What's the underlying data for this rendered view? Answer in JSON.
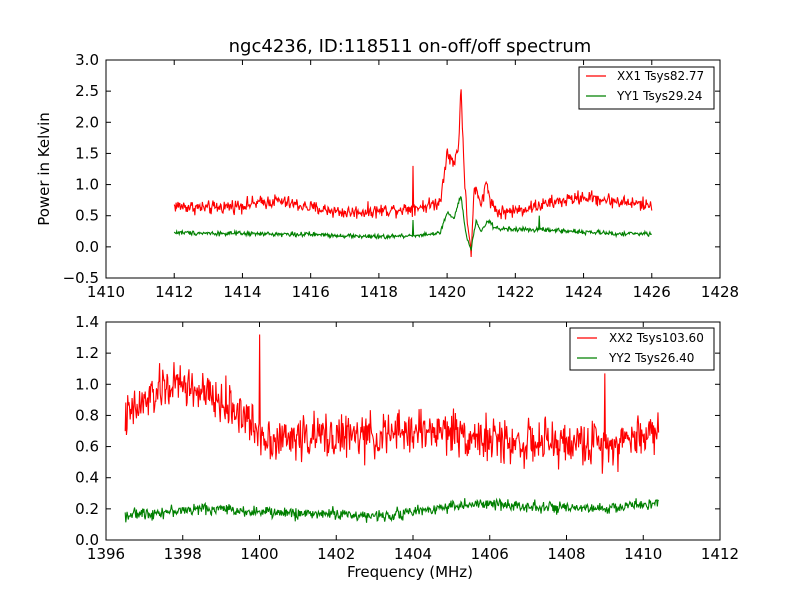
{
  "title": "ngc4236, ID:118511 on-off/off spectrum",
  "colors": {
    "xx": "#ff0000",
    "yy": "#008000"
  },
  "chart_data": [
    {
      "type": "line",
      "title": "ngc4236, ID:118511 on-off/off spectrum",
      "xlabel": "",
      "ylabel": "Power in Kelvin",
      "xlim": [
        1410,
        1428
      ],
      "ylim": [
        -0.5,
        3.0
      ],
      "xticks": [
        "1410",
        "1412",
        "1414",
        "1416",
        "1418",
        "1420",
        "1422",
        "1424",
        "1426",
        "1428"
      ],
      "yticks": [
        "−0.5",
        "0.0",
        "0.5",
        "1.0",
        "1.5",
        "2.0",
        "2.5",
        "3.0"
      ],
      "grid": false,
      "legend_position": "top-right",
      "series": [
        {
          "name": "XX1 Tsys82.77",
          "color": "#ff0000",
          "noise": 0.055,
          "spikes": [
            [
              1419.0,
              1.3
            ]
          ],
          "points": [
            [
              1412.0,
              0.66
            ],
            [
              1413.0,
              0.62
            ],
            [
              1414.0,
              0.67
            ],
            [
              1415.0,
              0.74
            ],
            [
              1416.0,
              0.63
            ],
            [
              1417.0,
              0.55
            ],
            [
              1418.0,
              0.58
            ],
            [
              1418.9,
              0.62
            ],
            [
              1419.4,
              0.66
            ],
            [
              1419.8,
              0.72
            ],
            [
              1420.0,
              1.55
            ],
            [
              1420.2,
              1.3
            ],
            [
              1420.35,
              1.7
            ],
            [
              1420.4,
              2.65
            ],
            [
              1420.5,
              1.2
            ],
            [
              1420.6,
              0.4
            ],
            [
              1420.7,
              -0.15
            ],
            [
              1420.8,
              1.0
            ],
            [
              1420.9,
              0.8
            ],
            [
              1421.0,
              0.65
            ],
            [
              1421.15,
              1.05
            ],
            [
              1421.3,
              0.7
            ],
            [
              1421.5,
              0.55
            ],
            [
              1422.0,
              0.58
            ],
            [
              1423.0,
              0.7
            ],
            [
              1424.0,
              0.8
            ],
            [
              1425.0,
              0.73
            ],
            [
              1426.0,
              0.66
            ]
          ]
        },
        {
          "name": "YY1 Tsys29.24",
          "color": "#008000",
          "noise": 0.018,
          "spikes": [
            [
              1419.0,
              0.43
            ],
            [
              1422.7,
              0.5
            ]
          ],
          "points": [
            [
              1412.0,
              0.23
            ],
            [
              1414.0,
              0.21
            ],
            [
              1416.0,
              0.2
            ],
            [
              1417.0,
              0.18
            ],
            [
              1418.0,
              0.16
            ],
            [
              1419.0,
              0.18
            ],
            [
              1419.8,
              0.22
            ],
            [
              1420.0,
              0.55
            ],
            [
              1420.2,
              0.45
            ],
            [
              1420.4,
              0.83
            ],
            [
              1420.55,
              0.2
            ],
            [
              1420.7,
              -0.05
            ],
            [
              1420.85,
              0.4
            ],
            [
              1421.0,
              0.25
            ],
            [
              1421.2,
              0.42
            ],
            [
              1421.4,
              0.3
            ],
            [
              1422.0,
              0.28
            ],
            [
              1423.0,
              0.27
            ],
            [
              1424.0,
              0.24
            ],
            [
              1425.0,
              0.21
            ],
            [
              1426.0,
              0.21
            ]
          ]
        }
      ]
    },
    {
      "type": "line",
      "title": "",
      "xlabel": "Frequency (MHz)",
      "ylabel": "",
      "xlim": [
        1396,
        1412
      ],
      "ylim": [
        0.0,
        1.4
      ],
      "xticks": [
        "1396",
        "1398",
        "1400",
        "1402",
        "1404",
        "1406",
        "1408",
        "1410",
        "1412"
      ],
      "yticks": [
        "0.0",
        "0.2",
        "0.4",
        "0.6",
        "0.8",
        "1.0",
        "1.2",
        "1.4"
      ],
      "grid": false,
      "legend_position": "top-right",
      "series": [
        {
          "name": "XX2 Tsys103.60",
          "color": "#ff0000",
          "noise": 0.07,
          "spikes": [
            [
              1400.0,
              1.32
            ],
            [
              1409.0,
              1.07
            ]
          ],
          "points": [
            [
              1396.5,
              0.78
            ],
            [
              1397.0,
              0.88
            ],
            [
              1397.5,
              0.98
            ],
            [
              1398.0,
              1.0
            ],
            [
              1398.5,
              0.94
            ],
            [
              1399.0,
              0.88
            ],
            [
              1399.5,
              0.82
            ],
            [
              1400.0,
              0.68
            ],
            [
              1400.5,
              0.64
            ],
            [
              1401.0,
              0.66
            ],
            [
              1402.0,
              0.67
            ],
            [
              1403.0,
              0.66
            ],
            [
              1404.0,
              0.7
            ],
            [
              1405.0,
              0.7
            ],
            [
              1406.0,
              0.64
            ],
            [
              1407.0,
              0.62
            ],
            [
              1408.0,
              0.62
            ],
            [
              1409.0,
              0.62
            ],
            [
              1409.5,
              0.64
            ],
            [
              1410.0,
              0.68
            ],
            [
              1410.4,
              0.7
            ]
          ]
        },
        {
          "name": "YY2 Tsys26.40",
          "color": "#008000",
          "noise": 0.018,
          "spikes": [],
          "points": [
            [
              1396.5,
              0.16
            ],
            [
              1397.5,
              0.18
            ],
            [
              1398.5,
              0.2
            ],
            [
              1399.0,
              0.2
            ],
            [
              1400.0,
              0.18
            ],
            [
              1401.0,
              0.17
            ],
            [
              1402.0,
              0.17
            ],
            [
              1403.0,
              0.15
            ],
            [
              1404.0,
              0.18
            ],
            [
              1405.0,
              0.22
            ],
            [
              1406.0,
              0.23
            ],
            [
              1407.0,
              0.22
            ],
            [
              1408.0,
              0.2
            ],
            [
              1409.0,
              0.2
            ],
            [
              1410.0,
              0.23
            ],
            [
              1410.4,
              0.24
            ]
          ]
        }
      ]
    }
  ]
}
